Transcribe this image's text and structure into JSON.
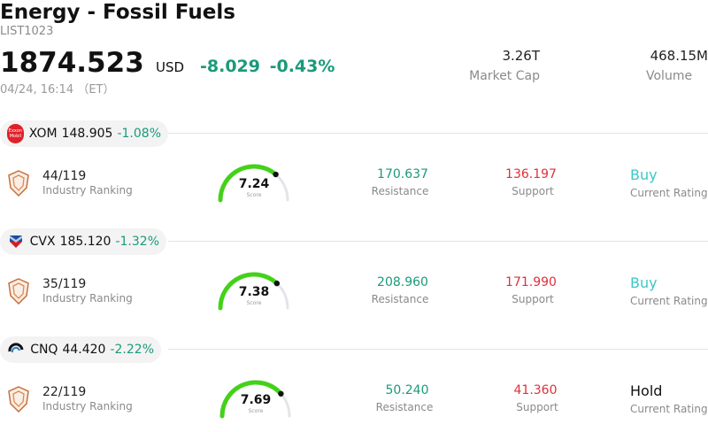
{
  "header": {
    "title": "Energy - Fossil Fuels",
    "code": "LIST1023",
    "price": "1874.523",
    "currency": "USD",
    "change": "-8.029",
    "change_pct": "-0.43%",
    "timestamp": "04/24, 16:14 （ET）",
    "market_cap_value": "3.26T",
    "market_cap_label": "Market Cap",
    "volume_value": "468.15M",
    "volume_label": "Volume"
  },
  "colors": {
    "positive": "#1a9a7a",
    "negative": "#e0303a",
    "buy": "#3cc7c7",
    "gauge": "#44d11a"
  },
  "stocks": [
    {
      "ticker": "XOM",
      "price": "148.905",
      "change_pct": "-1.08%",
      "logo_icon": "exxonmobil-logo",
      "logo_text_1": "Exxon",
      "logo_text_2": "Mobil",
      "rank": "44/119",
      "rank_label": "Industry Ranking",
      "score": "7.24",
      "score_value": 7.24,
      "score_label": "Score",
      "resistance": "170.637",
      "resistance_label": "Resistance",
      "support": "136.197",
      "support_label": "Support",
      "rating": "Buy",
      "rating_label": "Current Rating"
    },
    {
      "ticker": "CVX",
      "price": "185.120",
      "change_pct": "-1.32%",
      "logo_icon": "chevron-logo",
      "rank": "35/119",
      "rank_label": "Industry Ranking",
      "score": "7.38",
      "score_value": 7.38,
      "score_label": "Score",
      "resistance": "208.960",
      "resistance_label": "Resistance",
      "support": "171.990",
      "support_label": "Support",
      "rating": "Buy",
      "rating_label": "Current Rating"
    },
    {
      "ticker": "CNQ",
      "price": "44.420",
      "change_pct": "-2.22%",
      "logo_icon": "cnq-logo",
      "rank": "22/119",
      "rank_label": "Industry Ranking",
      "score": "7.69",
      "score_value": 7.69,
      "score_label": "Score",
      "resistance": "50.240",
      "resistance_label": "Resistance",
      "support": "41.360",
      "support_label": "Support",
      "rating": "Hold",
      "rating_label": "Current Rating"
    }
  ]
}
